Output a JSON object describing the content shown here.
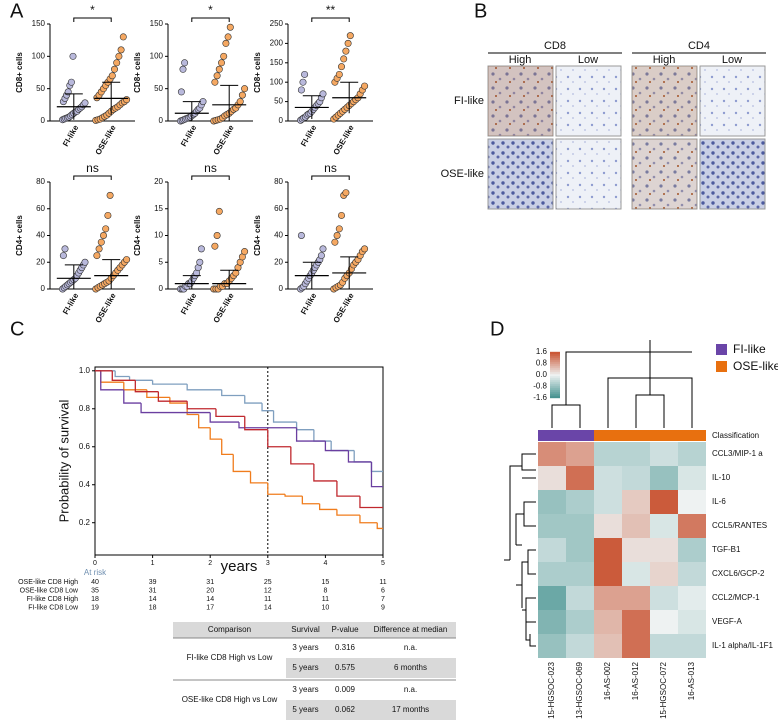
{
  "panels": {
    "a": "A",
    "b": "B",
    "c": "C",
    "d": "D"
  },
  "histology": {
    "markers": [
      "CD8",
      "CD4"
    ],
    "levels": [
      "High",
      "Low"
    ],
    "rows": [
      "FI-like",
      "OSE-like"
    ]
  },
  "table": {
    "header": [
      "Comparison",
      "Survival",
      "P-value",
      "Difference at median"
    ],
    "groups": [
      {
        "comparison": "FI-like CD8 High vs Low",
        "rows": [
          [
            "3 years",
            "0.316",
            "n.a."
          ],
          [
            "5 years",
            "0.575",
            "6 months"
          ]
        ]
      },
      {
        "comparison": "OSE-like CD8 High vs Low",
        "rows": [
          [
            "3 years",
            "0.009",
            "n.a."
          ],
          [
            "5 years",
            "0.062",
            "17 months"
          ]
        ]
      }
    ]
  },
  "chart_data": [
    {
      "type": "dotplot",
      "ylabel": "CD8+ cells",
      "categories": [
        "FI-like",
        "OSE-like"
      ],
      "colors": [
        "#b9b9dc",
        "#f5a862"
      ],
      "significance": "*",
      "points": [
        [
          2,
          3,
          4,
          5,
          6,
          8,
          10,
          12,
          14,
          15,
          18,
          20,
          22,
          25,
          28,
          30,
          35,
          40,
          45,
          55,
          60,
          100
        ],
        [
          1,
          2,
          3,
          5,
          7,
          9,
          12,
          15,
          18,
          20,
          22,
          25,
          28,
          30,
          33,
          36,
          40,
          45,
          50,
          55,
          60,
          65,
          70,
          80,
          90,
          100,
          110,
          130
        ]
      ],
      "means": [
        22,
        35
      ],
      "sd": [
        20,
        25
      ],
      "ylim": [
        0,
        150
      ],
      "yticks": [
        0,
        50,
        100,
        150
      ]
    },
    {
      "type": "dotplot",
      "ylabel": "CD8+ cells",
      "categories": [
        "FI-like",
        "OSE-like"
      ],
      "colors": [
        "#b9b9dc",
        "#f5a862"
      ],
      "significance": "*",
      "points": [
        [
          0,
          1,
          2,
          3,
          4,
          5,
          6,
          8,
          10,
          12,
          15,
          18,
          20,
          25,
          30,
          45,
          80,
          90
        ],
        [
          0,
          1,
          2,
          3,
          5,
          8,
          10,
          12,
          15,
          18,
          20,
          25,
          30,
          40,
          50,
          60,
          70,
          80,
          90,
          100,
          120,
          130,
          145
        ]
      ],
      "means": [
        12,
        25
      ],
      "sd": [
        18,
        30
      ],
      "ylim": [
        0,
        150
      ],
      "yticks": [
        0,
        50,
        100,
        150
      ]
    },
    {
      "type": "dotplot",
      "ylabel": "CD8+ cells",
      "categories": [
        "FI-like",
        "OSE-like"
      ],
      "colors": [
        "#b9b9dc",
        "#f5a862"
      ],
      "significance": "**",
      "points": [
        [
          2,
          5,
          8,
          10,
          15,
          18,
          20,
          25,
          30,
          35,
          40,
          45,
          50,
          60,
          70,
          80,
          100,
          120
        ],
        [
          5,
          10,
          15,
          20,
          25,
          30,
          35,
          40,
          45,
          50,
          55,
          60,
          70,
          80,
          90,
          100,
          110,
          120,
          140,
          160,
          180,
          200,
          220
        ]
      ],
      "means": [
        35,
        60
      ],
      "sd": [
        30,
        40
      ],
      "ylim": [
        0,
        250
      ],
      "yticks": [
        0,
        50,
        100,
        150,
        200,
        250
      ]
    },
    {
      "type": "dotplot",
      "ylabel": "CD4+ cells",
      "categories": [
        "FI-like",
        "OSE-like"
      ],
      "colors": [
        "#b9b9dc",
        "#f5a862"
      ],
      "significance": "ns",
      "points": [
        [
          0,
          1,
          2,
          3,
          4,
          5,
          6,
          7,
          8,
          10,
          12,
          14,
          16,
          18,
          20,
          25,
          30
        ],
        [
          0,
          1,
          2,
          3,
          4,
          5,
          6,
          8,
          10,
          12,
          14,
          16,
          18,
          20,
          22,
          25,
          30,
          35,
          40,
          45,
          55,
          70
        ]
      ],
      "means": [
        8,
        10
      ],
      "sd": [
        10,
        12
      ],
      "ylim": [
        0,
        80
      ],
      "yticks": [
        0,
        20,
        40,
        60,
        80
      ]
    },
    {
      "type": "dotplot",
      "ylabel": "CD4+ cells",
      "categories": [
        "FI-like",
        "OSE-like"
      ],
      "colors": [
        "#b9b9dc",
        "#f5a862"
      ],
      "significance": "ns",
      "points": [
        [
          0,
          0,
          0,
          0.5,
          0.5,
          1,
          1,
          1.5,
          2,
          2.5,
          3,
          4,
          5,
          7.5
        ],
        [
          0,
          0,
          0,
          0.5,
          0.5,
          1,
          1,
          1.5,
          2,
          2.5,
          3,
          4,
          5,
          6,
          7,
          8,
          10,
          14.5
        ]
      ],
      "means": [
        1,
        1
      ],
      "sd": [
        1.5,
        2.5
      ],
      "ylim": [
        0,
        20
      ],
      "yticks": [
        0,
        5,
        10,
        15,
        20
      ]
    },
    {
      "type": "dotplot",
      "ylabel": "CD4+ cells",
      "categories": [
        "FI-like",
        "OSE-like"
      ],
      "colors": [
        "#b9b9dc",
        "#f5a862"
      ],
      "significance": "ns",
      "points": [
        [
          0,
          1,
          2,
          4,
          6,
          8,
          10,
          12,
          14,
          16,
          18,
          20,
          22,
          25,
          30,
          40
        ],
        [
          0,
          1,
          2,
          3,
          5,
          8,
          10,
          12,
          15,
          18,
          20,
          22,
          25,
          28,
          30,
          35,
          40,
          45,
          55,
          70,
          72
        ]
      ],
      "means": [
        10,
        12
      ],
      "sd": [
        10,
        12
      ],
      "ylim": [
        0,
        80
      ],
      "yticks": [
        0,
        20,
        40,
        60,
        80
      ]
    },
    {
      "type": "survival",
      "ylabel": "Probability of survival",
      "xlabel": "years",
      "reference_x": 3,
      "at_risk_label": "At risk",
      "xlim": [
        0,
        5
      ],
      "xticks": [
        0,
        1,
        2,
        3,
        4,
        5
      ],
      "ylim": [
        0.03,
        1.02
      ],
      "yticks": [
        0.2,
        0.4,
        0.6,
        0.8,
        {
          "value": 1,
          "label": "1.0"
        }
      ],
      "series": [
        {
          "name": "OSE-like CD8 High",
          "color": "#7f9fbf",
          "x": [
            0,
            0.35,
            0.6,
            1.0,
            1.6,
            2.2,
            2.6,
            2.9,
            3.1,
            3.5,
            3.8,
            4.1,
            4.5,
            4.8
          ],
          "values": [
            1.0,
            0.97,
            0.95,
            0.93,
            0.9,
            0.87,
            0.83,
            0.79,
            0.73,
            0.69,
            0.63,
            0.58,
            0.52,
            0.47
          ],
          "at_risk": [
            40,
            39,
            31,
            25,
            15,
            11
          ]
        },
        {
          "name": "OSE-like CD8 Low",
          "color": "#f07c1c",
          "x": [
            0,
            0.1,
            0.5,
            0.9,
            1.3,
            1.6,
            1.8,
            2.0,
            2.2,
            2.4,
            2.7,
            3.0,
            3.3,
            3.6,
            3.9,
            4.2,
            4.6,
            4.9
          ],
          "values": [
            1.0,
            0.94,
            0.9,
            0.86,
            0.83,
            0.77,
            0.7,
            0.64,
            0.56,
            0.47,
            0.41,
            0.35,
            0.34,
            0.3,
            0.27,
            0.24,
            0.2,
            0.17
          ],
          "at_risk": [
            35,
            31,
            20,
            12,
            8,
            6
          ]
        },
        {
          "name": "FI-like CD8 High",
          "color": "#6a3fa0",
          "x": [
            0,
            0.1,
            0.5,
            0.8,
            1.6,
            2.0,
            2.5,
            3.5,
            4.0,
            4.4,
            4.8
          ],
          "values": [
            1.0,
            0.9,
            0.83,
            0.78,
            0.78,
            0.73,
            0.7,
            0.63,
            0.58,
            0.52,
            0.39
          ],
          "at_risk": [
            18,
            14,
            14,
            11,
            11,
            7
          ]
        },
        {
          "name": "FI-like CD8 Low",
          "color": "#c0282e",
          "x": [
            0,
            0.3,
            0.7,
            1.1,
            1.6,
            2.1,
            2.6,
            3.0,
            3.4,
            3.8,
            4.2,
            4.6
          ],
          "values": [
            1.0,
            0.95,
            0.89,
            0.84,
            0.8,
            0.76,
            0.69,
            0.6,
            0.51,
            0.42,
            0.34,
            0.28
          ],
          "at_risk": [
            19,
            18,
            17,
            14,
            10,
            9
          ]
        }
      ]
    },
    {
      "type": "heatmap",
      "classification_label": "Classification",
      "groups": [
        {
          "name": "FI-like",
          "color": "#6a45a8"
        },
        {
          "name": "OSE-like",
          "color": "#e8700f"
        }
      ],
      "column_groups": [
        0,
        0,
        1,
        1,
        1,
        1
      ],
      "columns": [
        "15-HGSOC-023",
        "13-HGSOC-069",
        "16-AS-002",
        "16-AS-012",
        "15-HGSOC-072",
        "16-AS-013"
      ],
      "rows": [
        "CCL3/MIP-1 a",
        "IL-10",
        "IL-6",
        "CCL5/RANTES",
        "TGF-B1",
        "CXCL6/GCP-2",
        "CCL2/MCP-1",
        "VEGF-A",
        "IL-1 alpha/IL-1F1"
      ],
      "values": [
        [
          1.0,
          0.8,
          -0.5,
          -0.5,
          -0.3,
          -0.5
        ],
        [
          0.2,
          1.3,
          -0.3,
          -0.4,
          -0.8,
          -0.2
        ],
        [
          -0.8,
          -0.6,
          -0.3,
          0.4,
          1.5,
          0.0
        ],
        [
          -0.7,
          -0.7,
          0.2,
          0.5,
          -0.2,
          1.2
        ],
        [
          -0.4,
          -0.7,
          1.5,
          0.2,
          0.2,
          -0.6
        ],
        [
          -0.6,
          -0.6,
          1.5,
          -0.2,
          0.3,
          -0.4
        ],
        [
          -1.2,
          -0.4,
          0.8,
          0.8,
          -0.3,
          -0.1
        ],
        [
          -1.0,
          -0.6,
          0.6,
          1.3,
          0.0,
          -0.2
        ],
        [
          -0.8,
          -0.4,
          0.5,
          1.3,
          -0.4,
          -0.4
        ]
      ],
      "colorscale": {
        "lim": [
          -1.6,
          1.6
        ],
        "colors": [
          "#3f8f8c",
          "#eef2f2",
          "#c9512f"
        ],
        "ticks": [
          1.6,
          0.8,
          {
            "value": 0,
            "label": "0.0"
          },
          -0.8,
          -1.6
        ]
      }
    }
  ]
}
